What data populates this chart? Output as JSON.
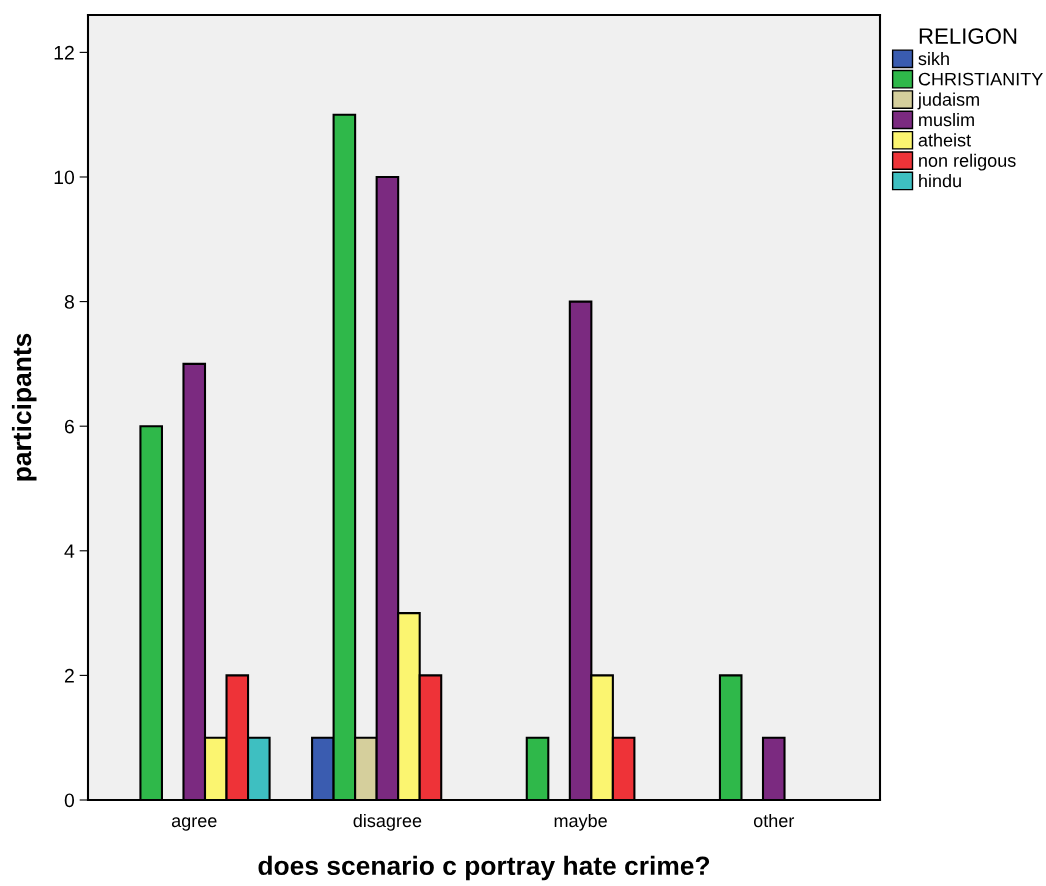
{
  "chart_data": {
    "type": "bar",
    "xlabel": "does scenario c portray hate crime?",
    "ylabel": "participants",
    "legend_title": "RELIGON",
    "categories": [
      "agree",
      "disagree",
      "maybe",
      "other"
    ],
    "series": [
      {
        "name": "sikh",
        "color": "#3a5cb0",
        "values": [
          null,
          1,
          null,
          null
        ]
      },
      {
        "name": "CHRISTIANITY",
        "color": "#2fb84a",
        "values": [
          6,
          11,
          1,
          2
        ]
      },
      {
        "name": "judaism",
        "color": "#d5cf9c",
        "values": [
          null,
          1,
          null,
          null
        ]
      },
      {
        "name": "muslim",
        "color": "#7b2a80",
        "values": [
          7,
          10,
          8,
          1
        ]
      },
      {
        "name": "atheist",
        "color": "#fbf570",
        "values": [
          1,
          3,
          2,
          null
        ]
      },
      {
        "name": "non religous",
        "color": "#ee3338",
        "values": [
          2,
          2,
          1,
          null
        ]
      },
      {
        "name": "hindu",
        "color": "#3ebfc1",
        "values": [
          1,
          null,
          null,
          null
        ]
      }
    ],
    "ylim": [
      0,
      12.6
    ],
    "yticks": [
      0,
      2,
      4,
      6,
      8,
      10,
      12
    ],
    "grid": false,
    "legend": "right"
  }
}
